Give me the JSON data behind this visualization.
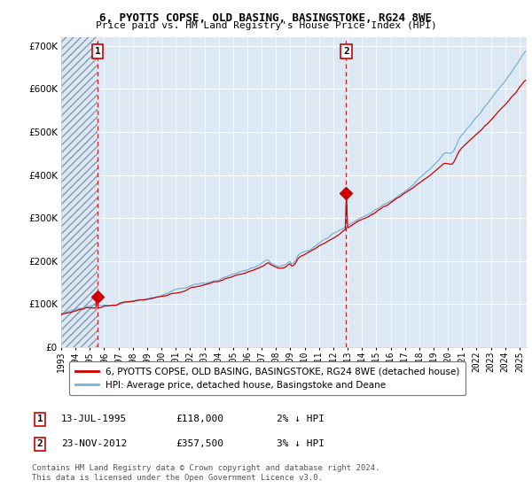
{
  "title1": "6, PYOTTS COPSE, OLD BASING, BASINGSTOKE, RG24 8WE",
  "title2": "Price paid vs. HM Land Registry's House Price Index (HPI)",
  "bg_color": "#dce9f5",
  "line1_color": "#cc0000",
  "line2_color": "#7ab0d4",
  "point1_date": 1995.54,
  "point1_value": 118000,
  "point2_date": 2012.9,
  "point2_value": 357500,
  "ylim_min": 0,
  "ylim_max": 720000,
  "xlim_min": 1993.0,
  "xlim_max": 2025.5,
  "legend1": "6, PYOTTS COPSE, OLD BASING, BASINGSTOKE, RG24 8WE (detached house)",
  "legend2": "HPI: Average price, detached house, Basingstoke and Deane",
  "footer1": "Contains HM Land Registry data © Crown copyright and database right 2024.",
  "footer2": "This data is licensed under the Open Government Licence v3.0.",
  "table_row1": [
    "1",
    "13-JUL-1995",
    "£118,000",
    "2% ↓ HPI"
  ],
  "table_row2": [
    "2",
    "23-NOV-2012",
    "£357,500",
    "3% ↓ HPI"
  ]
}
